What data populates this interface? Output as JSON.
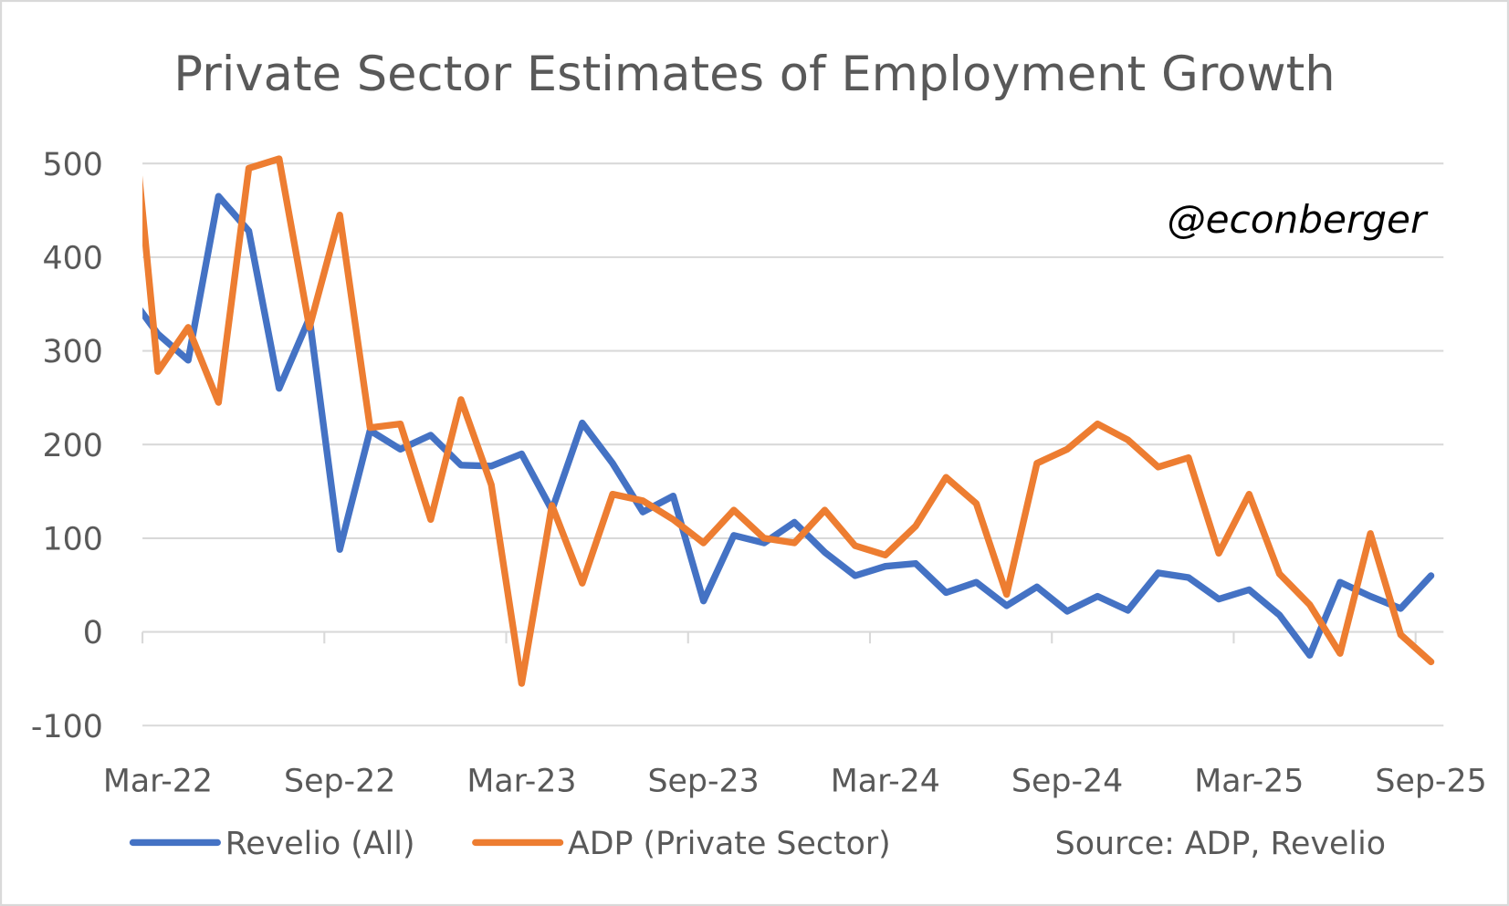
{
  "chart_data": {
    "type": "line",
    "title": "Private Sector Estimates of Employment Growth",
    "xlabel": "",
    "ylabel": "",
    "ylim": [
      -100,
      500
    ],
    "yticks": [
      "500",
      "400",
      "300",
      "200",
      "100",
      "0",
      "-100"
    ],
    "ytick_values": [
      500,
      400,
      300,
      200,
      100,
      0,
      -100
    ],
    "xtick_labels": [
      "Mar-22",
      "Sep-22",
      "Mar-23",
      "Sep-23",
      "Mar-24",
      "Sep-24",
      "Mar-25",
      "Sep-25"
    ],
    "grid": true,
    "legend_position": "bottom",
    "annotation": "@econberger",
    "source": "Source: ADP, Revelio",
    "x": [
      "Feb-22",
      "Mar-22",
      "Apr-22",
      "May-22",
      "Jun-22",
      "Jul-22",
      "Aug-22",
      "Sep-22",
      "Oct-22",
      "Nov-22",
      "Dec-22",
      "Jan-23",
      "Feb-23",
      "Mar-23",
      "Apr-23",
      "May-23",
      "Jun-23",
      "Jul-23",
      "Aug-23",
      "Sep-23",
      "Oct-23",
      "Nov-23",
      "Dec-23",
      "Jan-24",
      "Feb-24",
      "Mar-24",
      "Apr-24",
      "May-24",
      "Jun-24",
      "Jul-24",
      "Aug-24",
      "Sep-24",
      "Oct-24",
      "Nov-24",
      "Dec-24",
      "Jan-25",
      "Feb-25",
      "Mar-25",
      "Apr-25",
      "May-25",
      "Jun-25",
      "Jul-25",
      "Aug-25",
      "Sep-25"
    ],
    "series": [
      {
        "name": "Revelio (All)",
        "color": "#4472C4",
        "values": [
          362,
          318,
          290,
          465,
          428,
          260,
          335,
          88,
          215,
          195,
          210,
          178,
          177,
          190,
          130,
          223,
          180,
          128,
          145,
          33,
          103,
          95,
          117,
          85,
          60,
          70,
          73,
          42,
          53,
          28,
          48,
          22,
          38,
          23,
          63,
          58,
          35,
          45,
          18,
          -25,
          53,
          38,
          25,
          60
        ]
      },
      {
        "name": "ADP (Private Sector)",
        "color": "#ED7D31",
        "values": [
          615,
          278,
          325,
          245,
          495,
          505,
          325,
          445,
          218,
          222,
          120,
          248,
          157,
          -55,
          135,
          52,
          147,
          140,
          120,
          95,
          130,
          100,
          95,
          130,
          92,
          82,
          113,
          165,
          137,
          40,
          180,
          195,
          222,
          205,
          176,
          186,
          84,
          147,
          62,
          29,
          -23,
          105,
          -3,
          -32
        ]
      }
    ]
  }
}
